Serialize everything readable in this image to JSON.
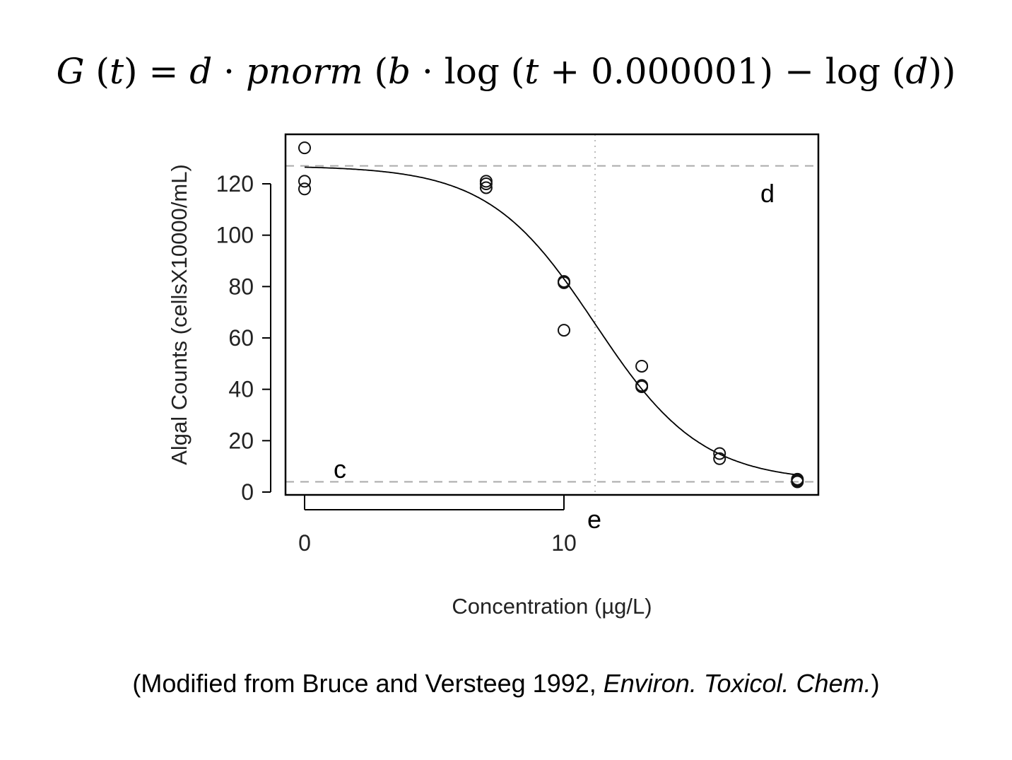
{
  "formula": {
    "lhs_fn": "G",
    "lhs_var": "t",
    "equals": "=",
    "d": "d",
    "dot1": "·",
    "fn": "pnorm",
    "b": "b",
    "dot2": "·",
    "log1": "log",
    "t": "t",
    "plus": "+",
    "constant": "0.000001",
    "minus": "−",
    "log2": "log",
    "d2": "d"
  },
  "caption": {
    "prefix": "(Modified from Bruce and Versteeg 1992, ",
    "journal": "Environ. Toxicol. Chem.",
    "suffix": ")"
  },
  "chart_data": {
    "type": "scatter",
    "xlabel": "Concentration (µg/L)",
    "ylabel": "Algal Counts (cellsX10000/mL)",
    "xlim": [
      -0.8,
      19.8
    ],
    "ylim": [
      -1.5,
      139.5
    ],
    "x_ticks": [
      0,
      10
    ],
    "y_ticks": [
      0,
      20,
      40,
      60,
      80,
      100,
      120
    ],
    "grid": false,
    "points": [
      {
        "x": 0,
        "y": 134
      },
      {
        "x": 0,
        "y": 121
      },
      {
        "x": 0,
        "y": 118
      },
      {
        "x": 7,
        "y": 121
      },
      {
        "x": 7,
        "y": 120
      },
      {
        "x": 7,
        "y": 118.5
      },
      {
        "x": 10,
        "y": 82
      },
      {
        "x": 10,
        "y": 81.5
      },
      {
        "x": 10,
        "y": 63
      },
      {
        "x": 13,
        "y": 49
      },
      {
        "x": 13,
        "y": 41.5
      },
      {
        "x": 13,
        "y": 41
      },
      {
        "x": 16,
        "y": 15
      },
      {
        "x": 16,
        "y": 13
      },
      {
        "x": 19,
        "y": 5
      },
      {
        "x": 19,
        "y": 4.5
      },
      {
        "x": 19,
        "y": 4
      }
    ],
    "fitted_curve": {
      "d": 127,
      "c": 4,
      "e": 11.2,
      "scale": 2.05
    },
    "reference_lines": {
      "d_level": 127,
      "c_level": 4,
      "e_position": 11.2
    },
    "annotations": {
      "d_label": "d",
      "c_label": "c",
      "e_label": "e"
    }
  }
}
